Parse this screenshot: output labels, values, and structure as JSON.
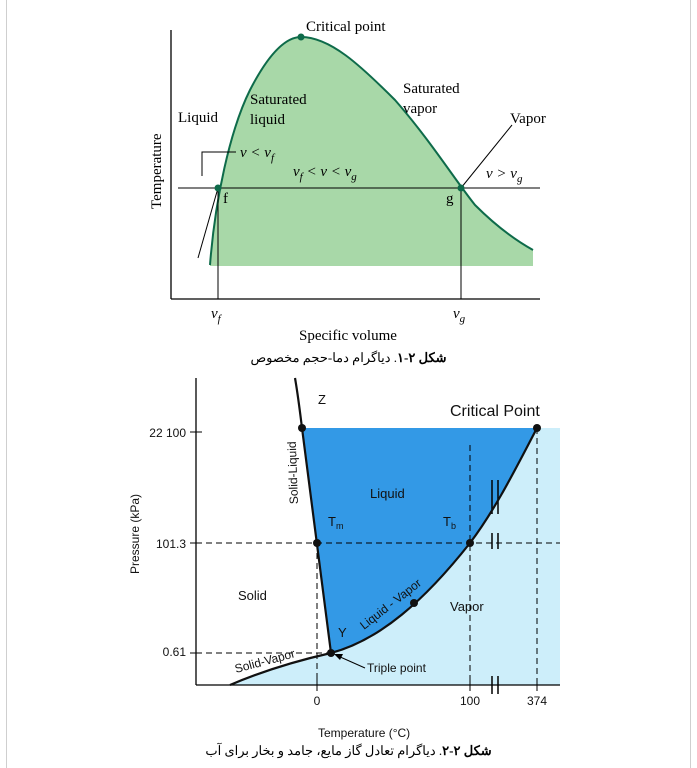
{
  "figure1": {
    "labels": {
      "critical_point": "Critical point",
      "saturated_liquid_1": "Saturated",
      "saturated_liquid_2": "liquid",
      "saturated_vapor_1": "Saturated",
      "saturated_vapor_2": "vapor",
      "liquid": "Liquid",
      "vapor": "Vapor",
      "v_lt_vf": "v < v",
      "v_lt_vf_sub": "f",
      "vf_v_vg_a": "v",
      "vf_v_vg_a_sub": "f",
      "vf_v_vg_b": " < v < v",
      "vf_v_vg_b_sub": "g",
      "v_gt_vg": "v > v",
      "v_gt_vg_sub": "g",
      "point_f": "f",
      "point_g": "g",
      "axis_vf": "v",
      "axis_vf_sub": "f",
      "axis_vg": "v",
      "axis_vg_sub": "g",
      "xlabel": "Specific volume",
      "ylabel": "Temperature"
    },
    "caption_bold": "شکل ۲-۱",
    "caption_text": ". دیاگرام دما-حجم مخصوص",
    "colors": {
      "dome_fill": "#a8d8a8",
      "dome_line": "#0e6b4a"
    }
  },
  "figure2": {
    "labels": {
      "critical_point": "Critical Point",
      "z": "Z",
      "solid_liquid": "Solid-Liquid",
      "liquid": "Liquid",
      "tm": "T",
      "tm_sub": "m",
      "tb": "T",
      "tb_sub": "b",
      "solid": "Solid",
      "vapor": "Vapor",
      "liquid_vapor": "Liquid - Vapor",
      "y": "Y",
      "solid_vapor": "Solid-Vapor",
      "triple_point": "Triple point",
      "xlabel": "Temperature (°C)",
      "ylabel": "Pressure (kPa)"
    },
    "y_ticks": [
      "22 100",
      "101.3",
      "0.61"
    ],
    "x_ticks": [
      "0",
      "100",
      "374"
    ],
    "caption_bold": "شکل ۲-۲",
    "caption_text": ". دیاگرام تعادل گاز مایع، جامد و بخار برای آب",
    "colors": {
      "liquid_fill": "#3399e6",
      "vapor_fill": "#cdeefa",
      "line": "#111111"
    }
  }
}
